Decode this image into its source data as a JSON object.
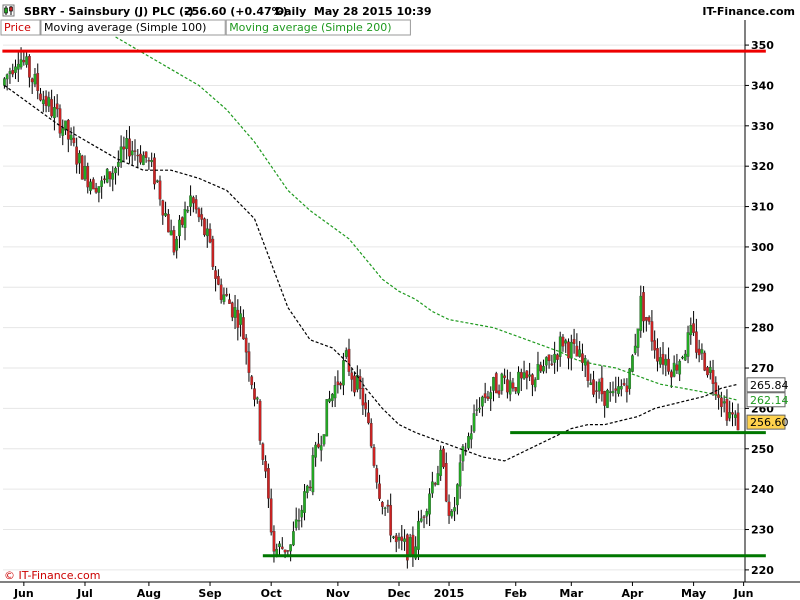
{
  "header": {
    "title": "SBRY - Sainsbury (J) PLC (-)",
    "price_change": "256.60 (+0.47%)",
    "period_date": "Daily  May 28 2015 10:39",
    "brand": "IT-Finance.com"
  },
  "legend": [
    {
      "label": "Price",
      "color": "#cc0000"
    },
    {
      "label": "Moving average (Simple 100)",
      "color": "#000000"
    },
    {
      "label": "Moving average (Simple 200)",
      "color": "#1f9a1f"
    }
  ],
  "watermark": "© IT-Finance.com",
  "colors": {
    "up": "#22aa22",
    "down": "#cc2222",
    "wick": "#000000",
    "resistance": "#ee0000",
    "support": "#007700",
    "grid": "#e6e6e6",
    "axis_bg": "#ffffff"
  },
  "chart_data": {
    "type": "candlestick",
    "title": "SBRY - Sainsbury (J) PLC (-)",
    "ylim": [
      217,
      352
    ],
    "y_ticks": [
      220,
      230,
      240,
      250,
      260,
      270,
      280,
      290,
      300,
      310,
      320,
      330,
      340,
      350
    ],
    "x_ticks": [
      {
        "label": "Jun",
        "i": 7
      },
      {
        "label": "Jul",
        "i": 29
      },
      {
        "label": "Aug",
        "i": 52
      },
      {
        "label": "Sep",
        "i": 74
      },
      {
        "label": "Oct",
        "i": 96
      },
      {
        "label": "Nov",
        "i": 120
      },
      {
        "label": "Dec",
        "i": 142
      },
      {
        "label": "2015",
        "i": 160
      },
      {
        "label": "Feb",
        "i": 184
      },
      {
        "label": "Mar",
        "i": 204
      },
      {
        "label": "Apr",
        "i": 226
      },
      {
        "label": "May",
        "i": 248
      },
      {
        "label": "Jun",
        "i": 266
      }
    ],
    "path": [
      [
        0,
        340
      ],
      [
        6,
        348
      ],
      [
        14,
        338
      ],
      [
        22,
        330
      ],
      [
        30,
        318
      ],
      [
        36,
        315
      ],
      [
        46,
        325
      ],
      [
        52,
        322
      ],
      [
        56,
        316
      ],
      [
        62,
        300
      ],
      [
        68,
        312
      ],
      [
        74,
        302
      ],
      [
        78,
        290
      ],
      [
        86,
        282
      ],
      [
        92,
        260
      ],
      [
        98,
        225
      ],
      [
        104,
        226
      ],
      [
        110,
        240
      ],
      [
        118,
        262
      ],
      [
        124,
        272
      ],
      [
        130,
        262
      ],
      [
        136,
        240
      ],
      [
        142,
        226
      ],
      [
        148,
        225
      ],
      [
        154,
        240
      ],
      [
        158,
        247
      ],
      [
        162,
        232
      ],
      [
        166,
        248
      ],
      [
        172,
        262
      ],
      [
        180,
        267
      ],
      [
        188,
        266
      ],
      [
        196,
        270
      ],
      [
        202,
        277
      ],
      [
        208,
        272
      ],
      [
        214,
        265
      ],
      [
        220,
        262
      ],
      [
        226,
        268
      ],
      [
        230,
        286
      ],
      [
        236,
        274
      ],
      [
        242,
        270
      ],
      [
        248,
        278
      ],
      [
        252,
        273
      ],
      [
        256,
        268
      ],
      [
        260,
        261
      ],
      [
        264,
        256.6
      ]
    ],
    "ma100": [
      [
        0,
        340
      ],
      [
        10,
        335
      ],
      [
        20,
        330
      ],
      [
        30,
        326
      ],
      [
        40,
        322
      ],
      [
        50,
        319
      ],
      [
        60,
        319
      ],
      [
        70,
        317
      ],
      [
        80,
        314
      ],
      [
        90,
        307
      ],
      [
        96,
        296
      ],
      [
        102,
        285
      ],
      [
        110,
        277
      ],
      [
        118,
        275
      ],
      [
        124,
        271
      ],
      [
        130,
        265
      ],
      [
        136,
        260
      ],
      [
        142,
        256
      ],
      [
        148,
        254
      ],
      [
        152,
        253
      ],
      [
        156,
        252
      ],
      [
        160,
        251
      ],
      [
        164,
        250
      ],
      [
        168,
        249
      ],
      [
        172,
        248
      ],
      [
        180,
        247
      ],
      [
        186,
        249
      ],
      [
        192,
        251
      ],
      [
        198,
        253
      ],
      [
        204,
        255
      ],
      [
        210,
        256
      ],
      [
        216,
        256
      ],
      [
        222,
        257
      ],
      [
        228,
        258
      ],
      [
        234,
        260
      ],
      [
        240,
        261
      ],
      [
        246,
        262
      ],
      [
        252,
        263
      ],
      [
        258,
        265
      ],
      [
        264,
        266
      ]
    ],
    "ma200": [
      [
        40,
        352
      ],
      [
        50,
        348
      ],
      [
        60,
        344
      ],
      [
        70,
        340
      ],
      [
        80,
        334
      ],
      [
        90,
        326
      ],
      [
        96,
        320
      ],
      [
        102,
        314
      ],
      [
        110,
        309
      ],
      [
        118,
        305
      ],
      [
        124,
        302
      ],
      [
        130,
        297
      ],
      [
        136,
        292
      ],
      [
        142,
        289
      ],
      [
        148,
        287
      ],
      [
        154,
        284
      ],
      [
        160,
        282
      ],
      [
        168,
        281
      ],
      [
        176,
        280
      ],
      [
        184,
        278
      ],
      [
        192,
        276
      ],
      [
        200,
        274
      ],
      [
        206,
        272
      ],
      [
        212,
        271
      ],
      [
        220,
        270
      ],
      [
        228,
        268
      ],
      [
        236,
        266
      ],
      [
        244,
        265
      ],
      [
        252,
        264
      ],
      [
        258,
        263
      ],
      [
        264,
        262
      ]
    ],
    "n_bars": 267,
    "resistance": {
      "y": 348.5,
      "x_start": 0,
      "x_end": 274
    },
    "supports": [
      {
        "y": 223.5,
        "x_start": 93,
        "x_end": 274
      },
      {
        "y": 254,
        "x_start": 182,
        "x_end": 274
      }
    ],
    "labels": [
      {
        "text": "265.84",
        "y": 265.84,
        "bg": "#ffffff",
        "fg": "#000000"
      },
      {
        "text": "262.14",
        "y": 262.14,
        "bg": "#ffffff",
        "fg": "#1f9a1f"
      },
      {
        "text": "256.60",
        "y": 256.6,
        "bg": "#ffd24d",
        "fg": "#000000"
      }
    ]
  }
}
